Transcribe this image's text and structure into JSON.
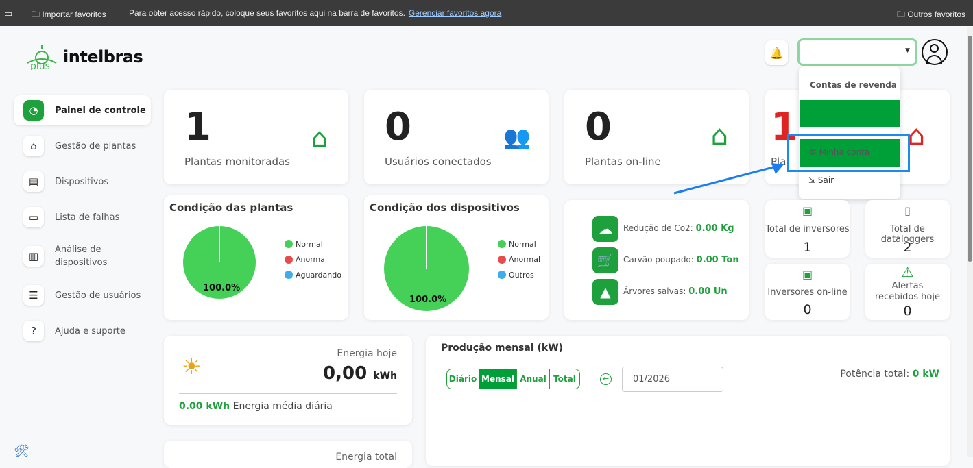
{
  "browser": {
    "import": "Importar favoritos",
    "message": "Para obter acesso rápido, coloque seus favoritos aqui na barra de favoritos.",
    "manage": "Gerenciar favoritos agora",
    "other": "Outros favoritos"
  },
  "brand": {
    "logo": "plus intelbras",
    "accent": "#1ea03c"
  },
  "sidebar": {
    "items": [
      {
        "label": "Painel de controle",
        "icon": "dashboard-icon"
      },
      {
        "label": "Gestão de plantas",
        "icon": "home-icon"
      },
      {
        "label": "Dispositivos",
        "icon": "device-icon"
      },
      {
        "label": "Lista de falhas",
        "icon": "archive-icon"
      },
      {
        "label": "Análise de dispositivos",
        "icon": "clipboard-chart-icon"
      },
      {
        "label": "Gestão de usuários",
        "icon": "server-icon"
      },
      {
        "label": "Ajuda e suporte",
        "icon": "help-icon"
      }
    ]
  },
  "stats": [
    {
      "value": "1",
      "label": "Plantas monitoradas"
    },
    {
      "value": "0",
      "label": "Usuários conectados"
    },
    {
      "value": "0",
      "label": "Plantas on-line"
    },
    {
      "value": "1",
      "label": "Pla"
    }
  ],
  "dropdown": {
    "header": "Contas de revenda",
    "my_account": "Minha conta",
    "logout": "Sair"
  },
  "plants_condition": {
    "title": "Condição das plantas",
    "percent": "100.0%",
    "legend": [
      "Normal",
      "Anormal",
      "Aguardando"
    ]
  },
  "devices_condition": {
    "title": "Condição dos dispositivos",
    "percent": "100.0%",
    "legend": [
      "Normal",
      "Anormal",
      "Outros"
    ]
  },
  "legend_colors": [
    "#45d158",
    "#e74c4c",
    "#3daee9"
  ],
  "environment": [
    {
      "label": "Redução de Co2:",
      "value": "0.00 Kg"
    },
    {
      "label": "Carvão poupado:",
      "value": "0.00 Ton"
    },
    {
      "label": "Árvores salvas:",
      "value": "0.00 Un"
    }
  ],
  "small": [
    {
      "label": "Total de inversores",
      "value": "1"
    },
    {
      "label": "Total de dataloggers",
      "value": "2"
    },
    {
      "label": "Inversores on-line",
      "value": "0"
    },
    {
      "label": "Alertas recebidos hoje",
      "value": "0"
    }
  ],
  "energy": {
    "title": "Energia hoje",
    "value": "0,00",
    "unit": "kWh",
    "avg_value": "0.00 kWh",
    "avg_label": "Energia média diária",
    "total_title": "Energia total"
  },
  "production": {
    "title": "Produção mensal (kW)",
    "tabs": [
      "Diário",
      "Mensal",
      "Anual",
      "Total"
    ],
    "active_tab": "Mensal",
    "date": "01/2026",
    "power_label": "Potência total:",
    "power_value": "0 kW"
  }
}
